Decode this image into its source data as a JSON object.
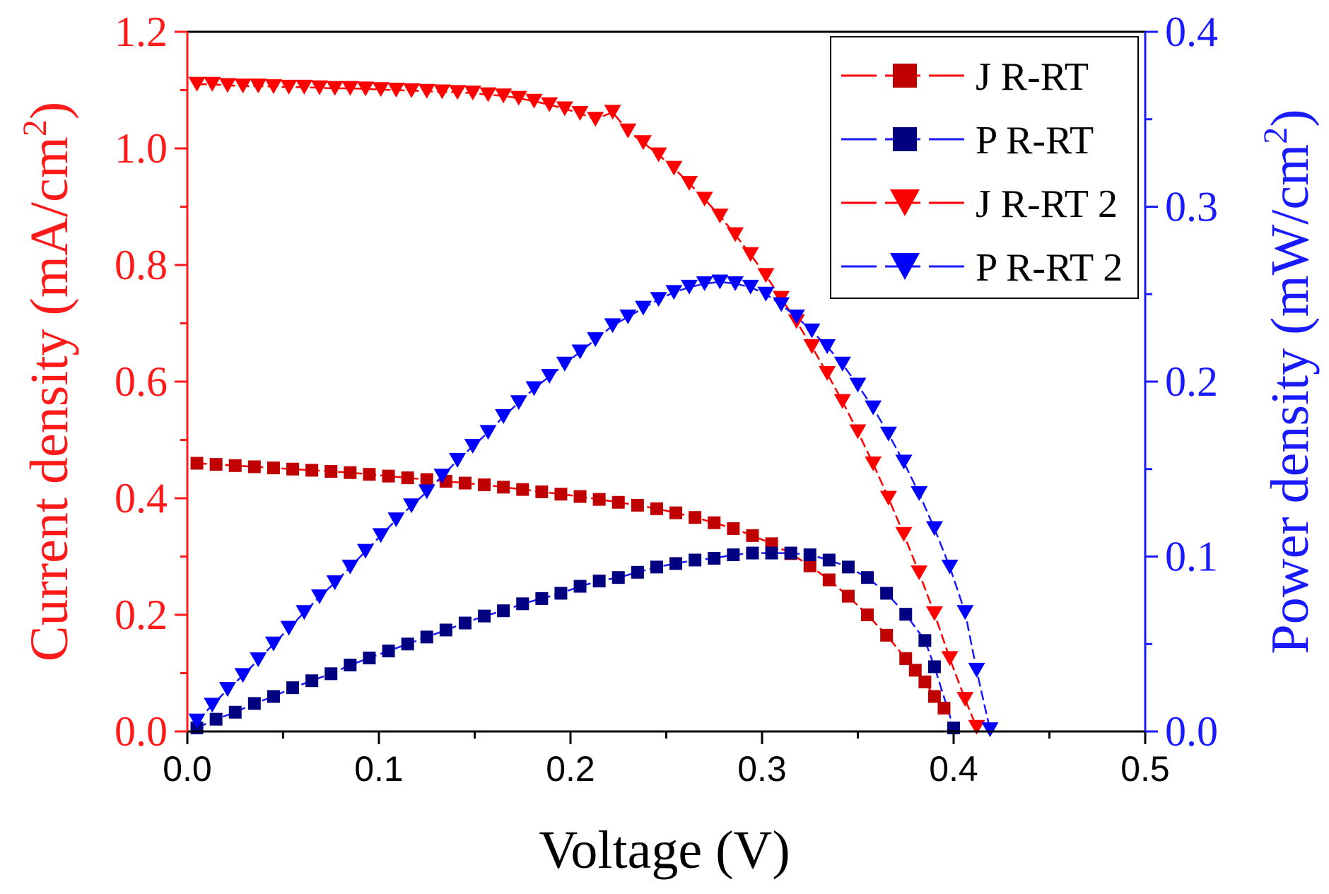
{
  "chart_data": {
    "type": "line",
    "xlabel": "Voltage (V)",
    "ylabel_left": "Current density (mA/cm²)",
    "ylabel_left_parts": [
      "Current density (mA/cm",
      "2",
      ")"
    ],
    "ylabel_right": "Power density (mW/cm²)",
    "ylabel_right_parts": [
      "Power density (mW/cm",
      "2",
      ")"
    ],
    "xlim": [
      0,
      0.5
    ],
    "ylim_left": [
      0,
      1.2
    ],
    "ylim_right": [
      0,
      0.4
    ],
    "x_ticks": [
      "0.0",
      "0.1",
      "0.2",
      "0.3",
      "0.4",
      "0.5"
    ],
    "y_left_ticks": [
      "0.0",
      "0.2",
      "0.4",
      "0.6",
      "0.8",
      "1.0",
      "1.2"
    ],
    "y_right_ticks": [
      "0.0",
      "0.1",
      "0.2",
      "0.3",
      "0.4"
    ],
    "legend_position": "top-right",
    "colors": {
      "left_axis": "#ff1a1a",
      "right_axis": "#1a1aff",
      "x_axis": "#000000"
    },
    "series": [
      {
        "name": "J R-RT",
        "axis": "left",
        "marker": "square",
        "marker_color": "#c00000",
        "line_color": "#ff0000",
        "x": [
          0.005,
          0.015,
          0.025,
          0.035,
          0.045,
          0.055,
          0.065,
          0.075,
          0.085,
          0.095,
          0.105,
          0.115,
          0.125,
          0.135,
          0.145,
          0.155,
          0.165,
          0.175,
          0.185,
          0.195,
          0.205,
          0.215,
          0.225,
          0.235,
          0.245,
          0.255,
          0.265,
          0.275,
          0.285,
          0.295,
          0.305,
          0.315,
          0.325,
          0.335,
          0.345,
          0.355,
          0.365,
          0.375,
          0.38,
          0.385,
          0.39,
          0.395
        ],
        "values": [
          0.46,
          0.458,
          0.456,
          0.454,
          0.452,
          0.45,
          0.448,
          0.446,
          0.444,
          0.441,
          0.438,
          0.435,
          0.432,
          0.429,
          0.426,
          0.423,
          0.419,
          0.415,
          0.411,
          0.407,
          0.403,
          0.398,
          0.393,
          0.388,
          0.382,
          0.375,
          0.367,
          0.358,
          0.348,
          0.336,
          0.322,
          0.305,
          0.284,
          0.26,
          0.232,
          0.2,
          0.165,
          0.125,
          0.105,
          0.085,
          0.06,
          0.04
        ]
      },
      {
        "name": "P R-RT",
        "axis": "right",
        "marker": "square",
        "marker_color": "#000080",
        "line_color": "#1a1aff",
        "x": [
          0.005,
          0.015,
          0.025,
          0.035,
          0.045,
          0.055,
          0.065,
          0.075,
          0.085,
          0.095,
          0.105,
          0.115,
          0.125,
          0.135,
          0.145,
          0.155,
          0.165,
          0.175,
          0.185,
          0.195,
          0.205,
          0.215,
          0.225,
          0.235,
          0.245,
          0.255,
          0.265,
          0.275,
          0.285,
          0.295,
          0.305,
          0.315,
          0.325,
          0.335,
          0.345,
          0.355,
          0.365,
          0.375,
          0.385,
          0.39,
          0.4
        ],
        "values": [
          0.002,
          0.007,
          0.011,
          0.016,
          0.02,
          0.025,
          0.029,
          0.033,
          0.038,
          0.042,
          0.046,
          0.05,
          0.054,
          0.058,
          0.062,
          0.066,
          0.069,
          0.073,
          0.076,
          0.079,
          0.083,
          0.086,
          0.088,
          0.091,
          0.094,
          0.096,
          0.098,
          0.099,
          0.101,
          0.102,
          0.102,
          0.102,
          0.101,
          0.098,
          0.094,
          0.088,
          0.079,
          0.067,
          0.052,
          0.037,
          0.002
        ]
      },
      {
        "name": "J R-RT 2",
        "axis": "left",
        "marker": "triangle-down",
        "marker_color": "#ff0000",
        "line_color": "#ff0000",
        "x": [
          0.005,
          0.013,
          0.021,
          0.029,
          0.037,
          0.045,
          0.053,
          0.061,
          0.069,
          0.077,
          0.085,
          0.093,
          0.101,
          0.109,
          0.117,
          0.125,
          0.133,
          0.141,
          0.149,
          0.157,
          0.165,
          0.173,
          0.181,
          0.189,
          0.197,
          0.205,
          0.213,
          0.222,
          0.23,
          0.238,
          0.246,
          0.254,
          0.262,
          0.27,
          0.278,
          0.286,
          0.294,
          0.302,
          0.31,
          0.318,
          0.326,
          0.334,
          0.342,
          0.35,
          0.358,
          0.366,
          0.374,
          0.382,
          0.39,
          0.398,
          0.406,
          0.412
        ],
        "values": [
          1.11,
          1.11,
          1.108,
          1.107,
          1.107,
          1.106,
          1.105,
          1.105,
          1.104,
          1.103,
          1.103,
          1.102,
          1.101,
          1.1,
          1.099,
          1.098,
          1.097,
          1.096,
          1.095,
          1.092,
          1.09,
          1.086,
          1.081,
          1.075,
          1.068,
          1.06,
          1.05,
          1.062,
          1.03,
          1.01,
          0.989,
          0.966,
          0.94,
          0.913,
          0.884,
          0.852,
          0.818,
          0.782,
          0.743,
          0.703,
          0.66,
          0.614,
          0.566,
          0.514,
          0.459,
          0.4,
          0.338,
          0.272,
          0.202,
          0.125,
          0.055,
          0.007
        ]
      },
      {
        "name": "P R-RT 2",
        "axis": "right",
        "marker": "triangle-down",
        "marker_color": "#0000ff",
        "line_color": "#1a1aff",
        "x": [
          0.005,
          0.013,
          0.021,
          0.029,
          0.037,
          0.045,
          0.053,
          0.061,
          0.069,
          0.077,
          0.085,
          0.093,
          0.101,
          0.109,
          0.117,
          0.125,
          0.133,
          0.141,
          0.149,
          0.157,
          0.165,
          0.173,
          0.181,
          0.189,
          0.197,
          0.205,
          0.213,
          0.222,
          0.23,
          0.238,
          0.246,
          0.254,
          0.262,
          0.27,
          0.278,
          0.286,
          0.294,
          0.302,
          0.31,
          0.318,
          0.326,
          0.334,
          0.342,
          0.35,
          0.358,
          0.366,
          0.374,
          0.382,
          0.39,
          0.398,
          0.406,
          0.412,
          0.419
        ],
        "values": [
          0.006,
          0.015,
          0.024,
          0.032,
          0.041,
          0.05,
          0.059,
          0.068,
          0.077,
          0.085,
          0.094,
          0.103,
          0.112,
          0.121,
          0.129,
          0.137,
          0.146,
          0.155,
          0.163,
          0.171,
          0.18,
          0.188,
          0.196,
          0.203,
          0.21,
          0.217,
          0.224,
          0.232,
          0.237,
          0.242,
          0.247,
          0.251,
          0.254,
          0.256,
          0.257,
          0.256,
          0.254,
          0.25,
          0.244,
          0.237,
          0.229,
          0.22,
          0.21,
          0.198,
          0.185,
          0.17,
          0.154,
          0.136,
          0.116,
          0.094,
          0.068,
          0.035,
          0.001
        ]
      }
    ]
  }
}
